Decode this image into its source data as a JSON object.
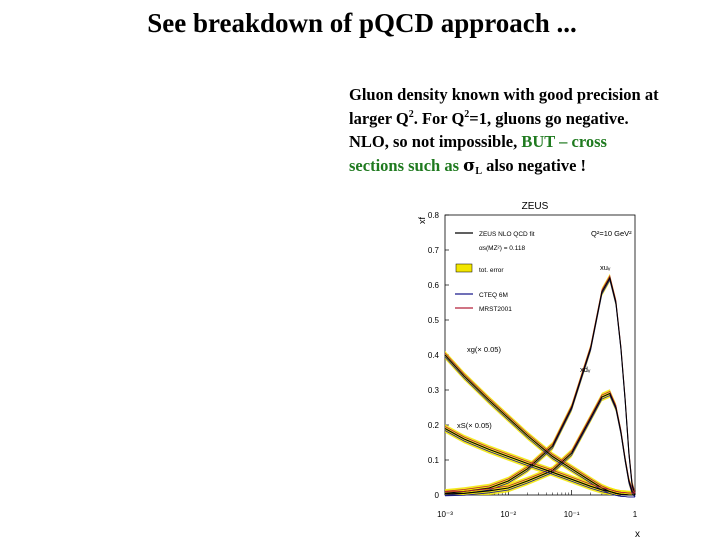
{
  "slide": {
    "title": "See breakdown of pQCD approach ...",
    "text": {
      "line1": "Gluon density known with good precision at",
      "line2_a": "larger Q",
      "line2_sup1": "2",
      "line2_b": ". For Q",
      "line2_sup2": "2",
      "line2_c": "=1, gluons go negative.",
      "line3_a": "NLO, so not impossible, ",
      "line3_highlight": "BUT – cross",
      "line4_highlight": "sections such as",
      "line4_b": "",
      "sigma_symbol": "σ",
      "sigma_sub": "L",
      "line4_c": " also negative !"
    }
  },
  "colors": {
    "highlight": "#1f7a1f",
    "band": "#f2e600",
    "zeus_line": "#000000",
    "cteq": "#1a1a8c",
    "mrst": "#b3203a"
  },
  "chart_data": {
    "type": "line",
    "title": "ZEUS",
    "scale_label": "Q²=10 GeV²",
    "ylabel": "xf",
    "xlabel": "x",
    "xscale": "log",
    "xlim": [
      0.001,
      1
    ],
    "ylim": [
      0,
      0.8
    ],
    "y_ticks": [
      "0",
      "0.1",
      "0.2",
      "0.3",
      "0.4",
      "0.5",
      "0.6",
      "0.7",
      "0.8"
    ],
    "x_ticks": [
      "10⁻³",
      "10⁻²",
      "10⁻¹",
      "1"
    ],
    "legend": [
      {
        "label": "ZEUS NLO QCD fit",
        "style": "line",
        "color": "#000000"
      },
      {
        "label": "αs(MZ²) = 0.118",
        "style": "text"
      },
      {
        "label": "tot. error",
        "style": "band",
        "color": "#f2e600"
      },
      {
        "label": "CTEQ 6M",
        "style": "line",
        "color": "#1a1a8c"
      },
      {
        "label": "MRST2001",
        "style": "line",
        "color": "#b3203a"
      }
    ],
    "annotations": [
      "xuᵥ",
      "xdᵥ",
      "xg(× 0.05)",
      "xS(× 0.05)"
    ],
    "x": [
      0.001,
      0.002,
      0.005,
      0.01,
      0.02,
      0.05,
      0.1,
      0.2,
      0.3,
      0.4,
      0.5,
      0.6,
      0.7,
      0.8,
      0.9,
      1.0
    ],
    "series": [
      {
        "name": "xuᵥ",
        "values": [
          0.005,
          0.01,
          0.02,
          0.04,
          0.075,
          0.14,
          0.25,
          0.42,
          0.58,
          0.62,
          0.55,
          0.42,
          0.27,
          0.12,
          0.03,
          0.0
        ]
      },
      {
        "name": "xdᵥ",
        "values": [
          0.003,
          0.005,
          0.012,
          0.02,
          0.04,
          0.07,
          0.12,
          0.22,
          0.28,
          0.29,
          0.25,
          0.18,
          0.1,
          0.04,
          0.01,
          0.0
        ]
      },
      {
        "name": "xg(× 0.05)",
        "values": [
          0.4,
          0.34,
          0.27,
          0.22,
          0.17,
          0.11,
          0.075,
          0.04,
          0.02,
          0.01,
          0.005,
          0.002,
          0.001,
          0.0,
          0.0,
          0.0
        ]
      },
      {
        "name": "xS(× 0.05)",
        "values": [
          0.19,
          0.16,
          0.13,
          0.11,
          0.09,
          0.065,
          0.045,
          0.025,
          0.015,
          0.01,
          0.005,
          0.002,
          0.001,
          0.0,
          0.0,
          0.0
        ]
      }
    ]
  }
}
